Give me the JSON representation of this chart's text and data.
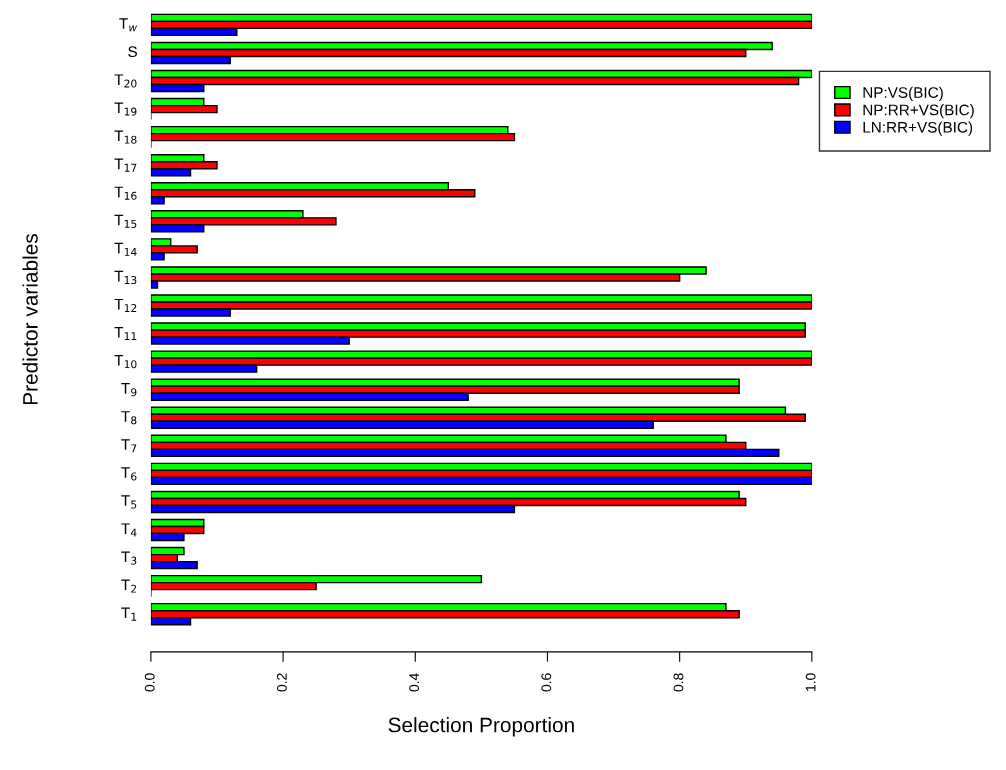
{
  "chart_data": {
    "type": "bar",
    "orientation": "horizontal",
    "xlabel": "Selection Proportion",
    "ylabel": "Predictor variables",
    "categories": [
      "T$_{w}$",
      "S",
      "T$_{20}$",
      "T$_{19}$",
      "T$_{18}$",
      "T$_{17}$",
      "T$_{16}$",
      "T$_{15}$",
      "T$_{14}$",
      "T$_{13}$",
      "T$_{12}$",
      "T$_{11}$",
      "T$_{10}$",
      "T$_{9}$",
      "T$_{8}$",
      "T$_{7}$",
      "T$_{6}$",
      "T$_{5}$",
      "T$_{4}$",
      "T$_{3}$",
      "T$_{2}$",
      "T$_{1}$"
    ],
    "series": [
      {
        "name": "NP:VS(BIC)",
        "color": "#00ff00",
        "values": [
          1.0,
          0.94,
          1.0,
          0.08,
          0.54,
          0.08,
          0.45,
          0.23,
          0.03,
          0.84,
          1.0,
          0.99,
          1.0,
          0.89,
          0.96,
          0.87,
          1.0,
          0.89,
          0.08,
          0.05,
          0.5,
          0.87
        ]
      },
      {
        "name": "NP:RR+VS(BIC)",
        "color": "#ff0000",
        "values": [
          1.0,
          0.9,
          0.98,
          0.1,
          0.55,
          0.1,
          0.49,
          0.28,
          0.07,
          0.8,
          1.0,
          0.99,
          1.0,
          0.89,
          0.99,
          0.9,
          1.0,
          0.9,
          0.08,
          0.04,
          0.25,
          0.89
        ]
      },
      {
        "name": "LN:RR+VS(BIC)",
        "color": "#0000ff",
        "values": [
          0.13,
          0.12,
          0.08,
          0.0,
          0.0,
          0.06,
          0.02,
          0.08,
          0.02,
          0.01,
          0.12,
          0.3,
          0.16,
          0.48,
          0.76,
          0.95,
          1.0,
          0.55,
          0.05,
          0.07,
          0.0,
          0.06
        ]
      }
    ],
    "xlim": [
      0,
      1
    ],
    "xticks": [
      {
        "value": 0,
        "label": "0.0"
      },
      {
        "value": 0.2,
        "label": "0.2"
      },
      {
        "value": 0.4,
        "label": "0.4"
      },
      {
        "value": 0.6,
        "label": "0.6"
      },
      {
        "value": 0.8,
        "label": "0.8"
      },
      {
        "value": 1,
        "label": "1.0"
      }
    ],
    "grid": false,
    "legend": "right"
  }
}
